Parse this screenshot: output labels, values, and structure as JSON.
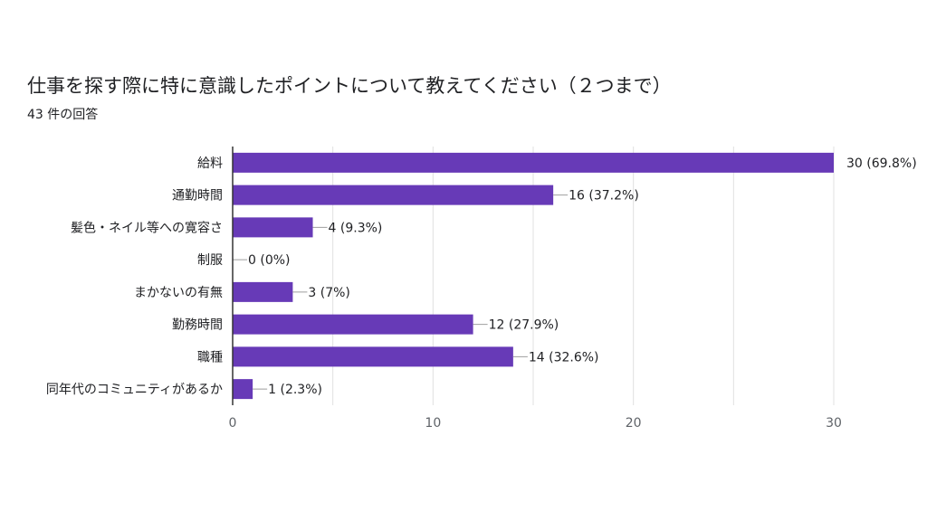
{
  "header": {
    "title": "仕事を探す際に特に意識したポイントについて教えてください（２つまで）",
    "subtitle": "43 件の回答"
  },
  "colors": {
    "bar": "#673ab7",
    "grid": "#e0e0e0",
    "axis": "#333333",
    "leader": "#9e9e9e"
  },
  "chart_data": {
    "type": "bar",
    "orientation": "horizontal",
    "categories": [
      "給料",
      "通勤時間",
      "髪色・ネイル等への寛容さ",
      "制服",
      "まかないの有無",
      "勤務時間",
      "職種",
      "同年代のコミュニティがあるか"
    ],
    "values": [
      30,
      16,
      4,
      0,
      3,
      12,
      14,
      1
    ],
    "data_labels": [
      "30 (69.8%)",
      "16 (37.2%)",
      "4 (9.3%)",
      "0 (0%)",
      "3 (7%)",
      "12 (27.9%)",
      "14 (32.6%)",
      "1 (2.3%)"
    ],
    "xlim": [
      0,
      30
    ],
    "x_ticks": [
      "0",
      "10",
      "20",
      "30"
    ],
    "grid": true
  }
}
